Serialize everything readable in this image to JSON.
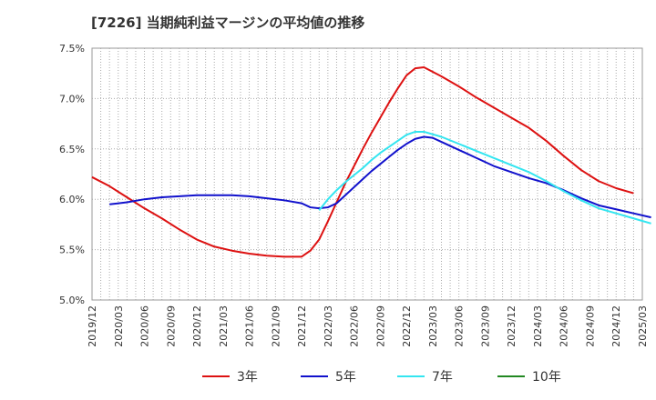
{
  "chart_data": {
    "type": "line",
    "title": "[7226]  当期純利益マージンの平均値の推移",
    "xlabel": "",
    "ylabel": "",
    "x_range": [
      "2019-12",
      "2025-03"
    ],
    "ylim": [
      5.0,
      7.5
    ],
    "y_ticks": [
      5.0,
      5.5,
      6.0,
      6.5,
      7.0,
      7.5
    ],
    "y_tick_labels": [
      "5.0%",
      "5.5%",
      "6.0%",
      "6.5%",
      "7.0%",
      "7.5%"
    ],
    "x_tick_labels": [
      "2019/12",
      "2020/03",
      "2020/06",
      "2020/09",
      "2020/12",
      "2021/03",
      "2021/06",
      "2021/09",
      "2021/12",
      "2022/03",
      "2022/06",
      "2022/09",
      "2022/12",
      "2023/03",
      "2023/06",
      "2023/09",
      "2023/12",
      "2024/03",
      "2024/06",
      "2024/09",
      "2024/12",
      "2025/03"
    ],
    "grid": true,
    "legend_position": "bottom",
    "series": [
      {
        "name": "3年",
        "color": "#dd1111",
        "points": [
          [
            "2019-12",
            6.22
          ],
          [
            "2020-02",
            6.13
          ],
          [
            "2020-04",
            6.02
          ],
          [
            "2020-06",
            5.91
          ],
          [
            "2020-08",
            5.81
          ],
          [
            "2020-10",
            5.7
          ],
          [
            "2020-12",
            5.6
          ],
          [
            "2021-02",
            5.53
          ],
          [
            "2021-04",
            5.49
          ],
          [
            "2021-06",
            5.46
          ],
          [
            "2021-08",
            5.44
          ],
          [
            "2021-10",
            5.43
          ],
          [
            "2021-12",
            5.43
          ],
          [
            "2022-01",
            5.49
          ],
          [
            "2022-02",
            5.6
          ],
          [
            "2022-03",
            5.78
          ],
          [
            "2022-04",
            5.97
          ],
          [
            "2022-05",
            6.16
          ],
          [
            "2022-06",
            6.33
          ],
          [
            "2022-07",
            6.5
          ],
          [
            "2022-08",
            6.66
          ],
          [
            "2022-09",
            6.81
          ],
          [
            "2022-10",
            6.96
          ],
          [
            "2022-11",
            7.1
          ],
          [
            "2022-12",
            7.23
          ],
          [
            "2023-01",
            7.3
          ],
          [
            "2023-02",
            7.31
          ],
          [
            "2023-04",
            7.22
          ],
          [
            "2023-06",
            7.12
          ],
          [
            "2023-08",
            7.01
          ],
          [
            "2023-10",
            6.91
          ],
          [
            "2023-12",
            6.81
          ],
          [
            "2024-02",
            6.71
          ],
          [
            "2024-04",
            6.58
          ],
          [
            "2024-06",
            6.43
          ],
          [
            "2024-08",
            6.29
          ],
          [
            "2024-10",
            6.18
          ],
          [
            "2024-12",
            6.11
          ],
          [
            "2025-02",
            6.06
          ]
        ]
      },
      {
        "name": "5年",
        "color": "#1111cc",
        "points": [
          [
            "2020-02",
            5.95
          ],
          [
            "2020-04",
            5.97
          ],
          [
            "2020-06",
            6.0
          ],
          [
            "2020-08",
            6.02
          ],
          [
            "2020-10",
            6.03
          ],
          [
            "2020-12",
            6.04
          ],
          [
            "2021-02",
            6.04
          ],
          [
            "2021-04",
            6.04
          ],
          [
            "2021-06",
            6.03
          ],
          [
            "2021-08",
            6.01
          ],
          [
            "2021-10",
            5.99
          ],
          [
            "2021-12",
            5.96
          ],
          [
            "2022-01",
            5.92
          ],
          [
            "2022-02",
            5.91
          ],
          [
            "2022-03",
            5.92
          ],
          [
            "2022-04",
            5.96
          ],
          [
            "2022-05",
            6.04
          ],
          [
            "2022-06",
            6.12
          ],
          [
            "2022-07",
            6.2
          ],
          [
            "2022-08",
            6.28
          ],
          [
            "2022-09",
            6.35
          ],
          [
            "2022-10",
            6.42
          ],
          [
            "2022-11",
            6.49
          ],
          [
            "2022-12",
            6.55
          ],
          [
            "2023-01",
            6.6
          ],
          [
            "2023-02",
            6.62
          ],
          [
            "2023-03",
            6.61
          ],
          [
            "2023-04",
            6.57
          ],
          [
            "2023-06",
            6.49
          ],
          [
            "2023-08",
            6.41
          ],
          [
            "2023-10",
            6.33
          ],
          [
            "2023-12",
            6.27
          ],
          [
            "2024-02",
            6.21
          ],
          [
            "2024-04",
            6.16
          ],
          [
            "2024-06",
            6.09
          ],
          [
            "2024-08",
            6.01
          ],
          [
            "2024-10",
            5.94
          ],
          [
            "2024-12",
            5.9
          ],
          [
            "2025-02",
            5.86
          ],
          [
            "2025-04",
            5.82
          ]
        ]
      },
      {
        "name": "7年",
        "color": "#33e5f0",
        "points": [
          [
            "2022-02",
            5.89
          ],
          [
            "2022-03",
            6.0
          ],
          [
            "2022-04",
            6.09
          ],
          [
            "2022-05",
            6.17
          ],
          [
            "2022-06",
            6.24
          ],
          [
            "2022-07",
            6.31
          ],
          [
            "2022-08",
            6.39
          ],
          [
            "2022-09",
            6.46
          ],
          [
            "2022-10",
            6.52
          ],
          [
            "2022-11",
            6.58
          ],
          [
            "2022-12",
            6.64
          ],
          [
            "2023-01",
            6.67
          ],
          [
            "2023-02",
            6.67
          ],
          [
            "2023-04",
            6.62
          ],
          [
            "2023-06",
            6.55
          ],
          [
            "2023-08",
            6.48
          ],
          [
            "2023-10",
            6.41
          ],
          [
            "2023-12",
            6.34
          ],
          [
            "2024-02",
            6.27
          ],
          [
            "2024-04",
            6.18
          ],
          [
            "2024-06",
            6.08
          ],
          [
            "2024-08",
            5.99
          ],
          [
            "2024-10",
            5.91
          ],
          [
            "2024-12",
            5.86
          ],
          [
            "2025-02",
            5.81
          ],
          [
            "2025-04",
            5.76
          ]
        ]
      },
      {
        "name": "10年",
        "color": "#228822",
        "points": []
      }
    ]
  }
}
